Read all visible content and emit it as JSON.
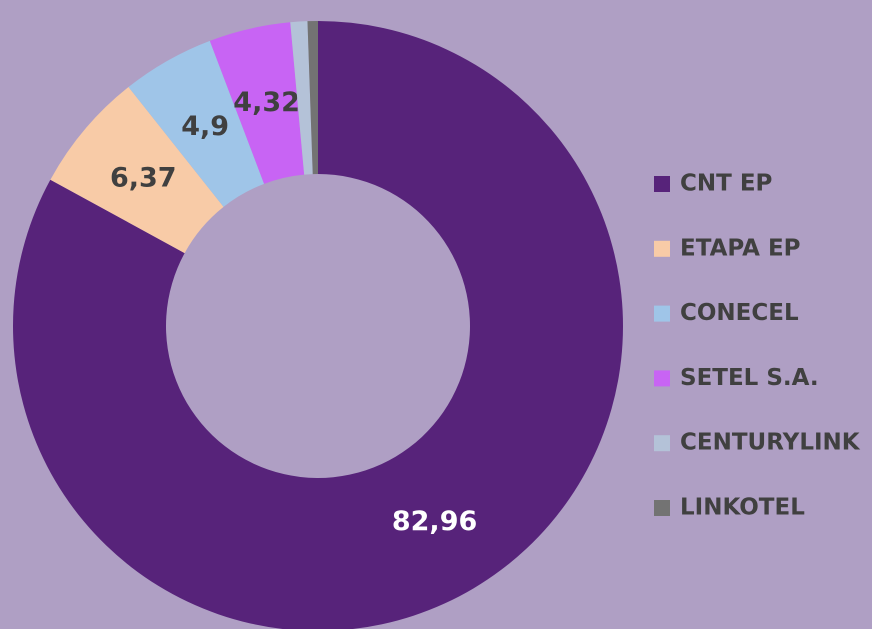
{
  "chart_data": {
    "type": "donut",
    "categories": [
      "CNT EP",
      "ETAPA EP",
      "CONECEL",
      "SETEL S.A.",
      "CENTURYLINK",
      "LINKOTEL"
    ],
    "values": [
      82.96,
      6.37,
      4.9,
      4.32,
      0.9,
      0.55
    ],
    "value_labels": [
      "82,96",
      "6,37",
      "4,9",
      "4,32",
      null,
      null
    ],
    "colors": [
      "#57237a",
      "#f8cba7",
      "#9fc5e8",
      "#c864f4",
      "#b4c2d8",
      "#737373"
    ],
    "legend": "right"
  }
}
